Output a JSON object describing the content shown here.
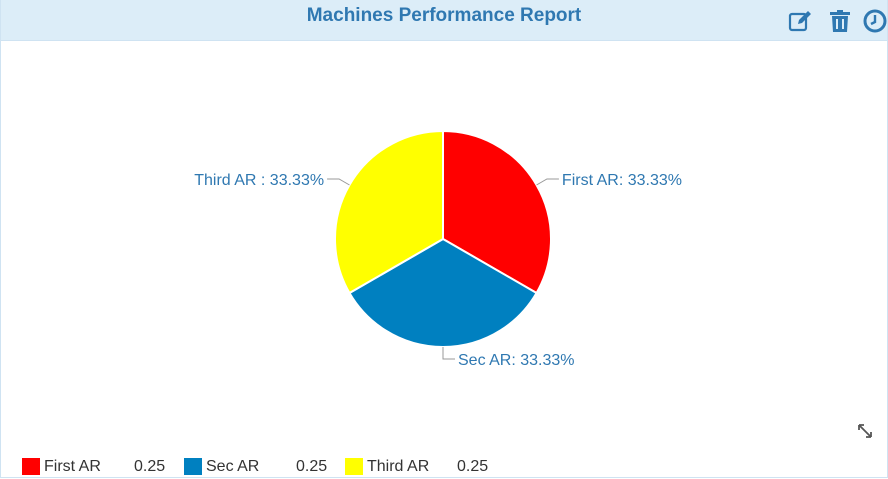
{
  "header": {
    "title": "Machines Performance Report",
    "tools": [
      "edit-icon",
      "trash-icon",
      "clock-icon"
    ],
    "color": "#2f78b1"
  },
  "chart_data": {
    "type": "pie",
    "slices": [
      {
        "name": "First AR",
        "value": 0.25,
        "label": "First AR: 33.33%",
        "color": "#ff0000"
      },
      {
        "name": "Sec AR",
        "value": 0.25,
        "label": "Sec AR: 33.33%",
        "color": "#0080c0"
      },
      {
        "name": "Third AR",
        "value": 0.25,
        "label": "Third AR : 33.33%",
        "color": "#ffff00"
      }
    ],
    "legend": [
      {
        "name": "First AR",
        "value": "0.25",
        "color": "#ff0000"
      },
      {
        "name": "Sec AR",
        "value": "0.25",
        "color": "#0080c0"
      },
      {
        "name": "Third AR",
        "value": "0.25",
        "color": "#ffff00"
      }
    ],
    "legend_position": "bottom-left"
  }
}
